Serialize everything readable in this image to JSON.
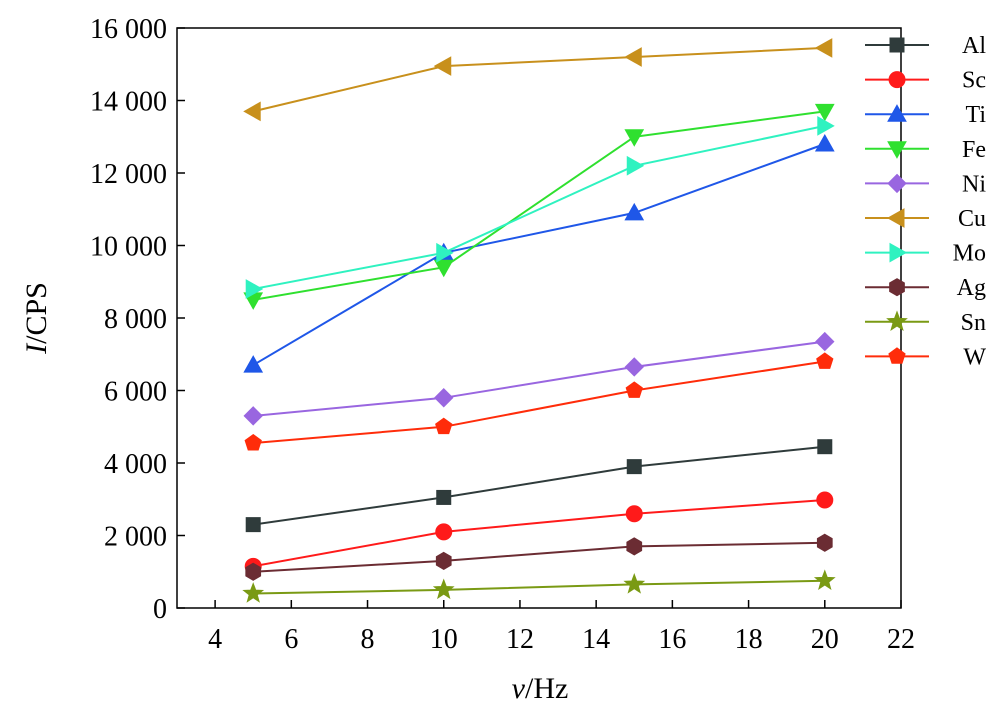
{
  "chart_data": {
    "type": "line",
    "xlabel_italic": "v",
    "xlabel_rest": "/Hz",
    "ylabel_italic": "I",
    "ylabel_rest": "/CPS",
    "xlim": [
      3,
      22
    ],
    "ylim": [
      0,
      16000
    ],
    "xticks": [
      4,
      6,
      8,
      10,
      12,
      14,
      16,
      18,
      20,
      22
    ],
    "yticks": [
      0,
      2000,
      4000,
      6000,
      8000,
      10000,
      12000,
      14000,
      16000
    ],
    "xtick_labels": [
      "4",
      "6",
      "8",
      "10",
      "12",
      "14",
      "16",
      "18",
      "20",
      "22"
    ],
    "ytick_labels": [
      "0",
      "2 000",
      "4 000",
      "6 000",
      "8 000",
      "10 000",
      "12 000",
      "14 000",
      "16 000"
    ],
    "legend_position": "right",
    "grid": false,
    "x": [
      5,
      10,
      15,
      20
    ],
    "series": [
      {
        "name": "Al",
        "values": [
          2300,
          3050,
          3900,
          4450
        ],
        "color": "#2f3b3b",
        "marker": "square"
      },
      {
        "name": "Sc",
        "values": [
          1150,
          2100,
          2600,
          2980
        ],
        "color": "#ff1a1a",
        "marker": "circle"
      },
      {
        "name": "Ti",
        "values": [
          6700,
          9800,
          10900,
          12800
        ],
        "color": "#1f57e8",
        "marker": "triangle-up"
      },
      {
        "name": "Fe",
        "values": [
          8500,
          9400,
          13000,
          13700
        ],
        "color": "#2fe02f",
        "marker": "triangle-down"
      },
      {
        "name": "Ni",
        "values": [
          5300,
          5800,
          6650,
          7350
        ],
        "color": "#9966e0",
        "marker": "diamond"
      },
      {
        "name": "Cu",
        "values": [
          13700,
          14950,
          15200,
          15450
        ],
        "color": "#c8901c",
        "marker": "triangle-left"
      },
      {
        "name": "Mo",
        "values": [
          8800,
          9800,
          12200,
          13300
        ],
        "color": "#2ff2c0",
        "marker": "triangle-right"
      },
      {
        "name": "Ag",
        "values": [
          1000,
          1300,
          1700,
          1800
        ],
        "color": "#6b2c33",
        "marker": "hexagon"
      },
      {
        "name": "Sn",
        "values": [
          400,
          500,
          650,
          750
        ],
        "color": "#7a9a14",
        "marker": "star"
      },
      {
        "name": "W",
        "values": [
          4550,
          5000,
          6000,
          6800
        ],
        "color": "#ff2c0a",
        "marker": "pentagon"
      }
    ]
  }
}
